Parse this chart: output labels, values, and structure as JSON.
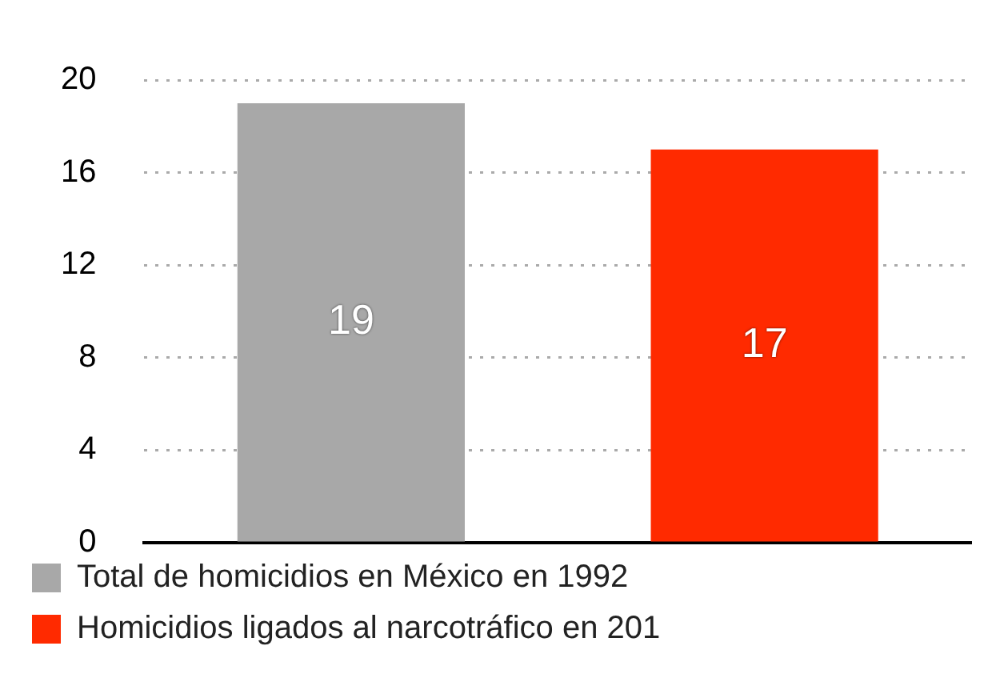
{
  "chart_data": {
    "type": "bar",
    "categories": [
      null,
      null
    ],
    "series": [
      {
        "name": "Total de homicidios en México en 1992",
        "color": "#a8a8a8",
        "values": [
          19,
          null
        ]
      },
      {
        "name": "Homicidios ligados al narcotráfico en 201",
        "color": "#ff2a00",
        "values": [
          null,
          17
        ]
      }
    ],
    "ylim": [
      0,
      20
    ],
    "yticks": [
      0,
      4,
      8,
      12,
      16,
      20
    ],
    "grid": "y",
    "data_labels": true,
    "legend": "bottom"
  }
}
